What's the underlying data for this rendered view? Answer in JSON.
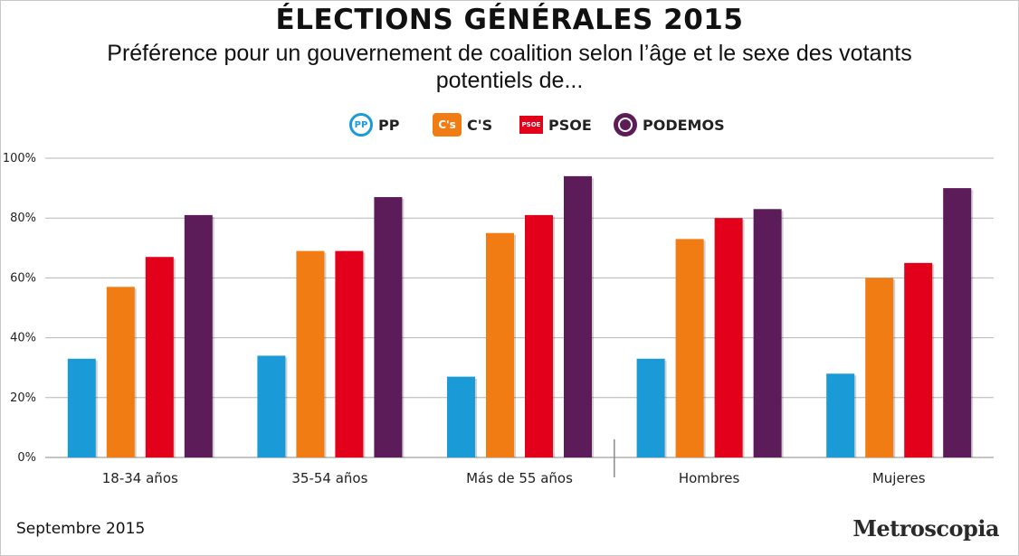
{
  "header": {
    "title": "ÉLECTIONS GÉNÉRALES 2015",
    "subtitle": "Préférence pour un gouvernement de coalition selon l’âge et le sexe des votants potentiels de..."
  },
  "legend": [
    {
      "label": "PP",
      "icon": "pp-logo-icon",
      "icon_text": "PP",
      "color": "#1a9bd7"
    },
    {
      "label": "C'S",
      "icon": "ciudadanos-logo-icon",
      "icon_text": "C's",
      "color": "#f07c13"
    },
    {
      "label": "PSOE",
      "icon": "psoe-logo-icon",
      "icon_text": "PSOE",
      "color": "#e3001b"
    },
    {
      "label": "PODEMOS",
      "icon": "podemos-logo-icon",
      "icon_text": "",
      "color": "#5c1c59"
    }
  ],
  "footer": {
    "date": "Septembre 2015",
    "source": "Metroscopia"
  },
  "chart_data": {
    "type": "bar",
    "categories": [
      "18-34 años",
      "35-54 años",
      "Más de 55 años",
      "Hombres",
      "Mujeres"
    ],
    "series": [
      {
        "name": "PP",
        "color": "#1a9bd7",
        "values": [
          33,
          34,
          27,
          33,
          28
        ]
      },
      {
        "name": "C'S",
        "color": "#f07c13",
        "values": [
          57,
          69,
          75,
          73,
          60
        ]
      },
      {
        "name": "PSOE",
        "color": "#e3001b",
        "values": [
          67,
          69,
          81,
          80,
          65
        ]
      },
      {
        "name": "PODEMOS",
        "color": "#5c1c59",
        "values": [
          81,
          87,
          94,
          83,
          90
        ]
      }
    ],
    "ylim": [
      0,
      100
    ],
    "yticks": [
      "0%",
      "20%",
      "40%",
      "60%",
      "80%",
      "100%"
    ],
    "grid": true,
    "legend_position": "top-center"
  }
}
